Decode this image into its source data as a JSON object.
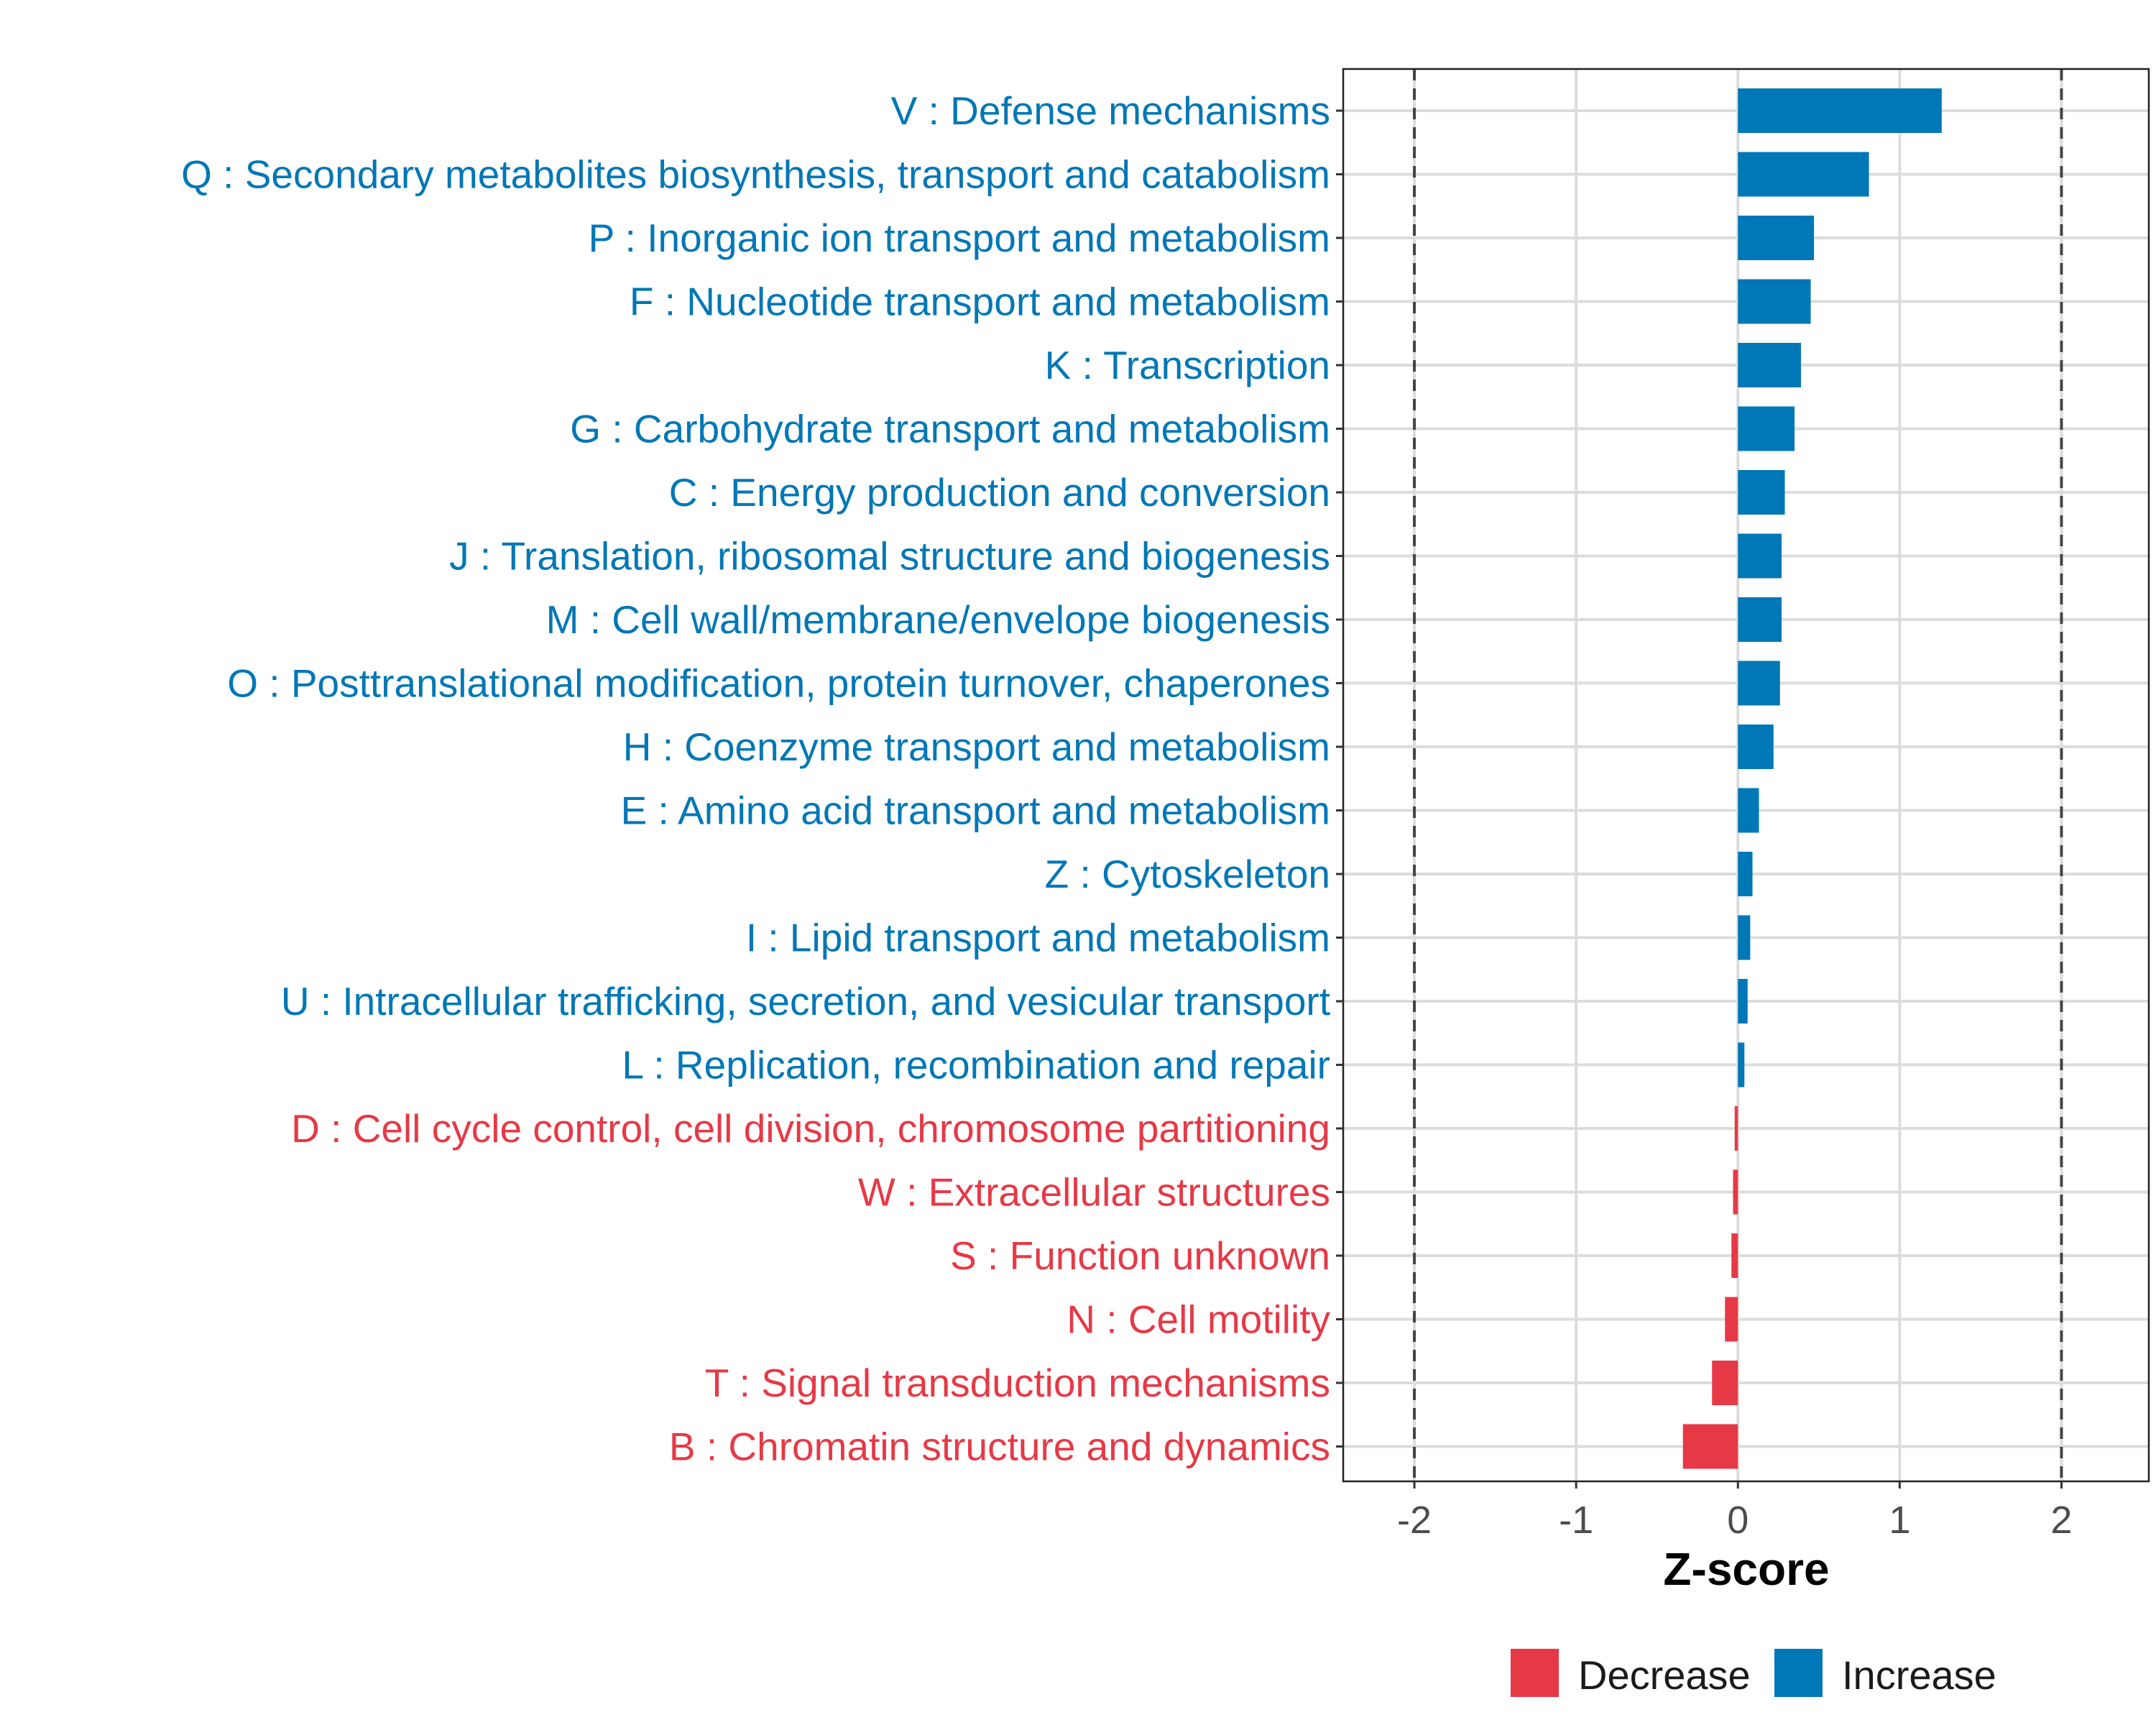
{
  "chart_data": {
    "type": "bar",
    "orientation": "horizontal",
    "title": "",
    "xlabel": "Z-score",
    "ylabel": "",
    "xlim": [
      -2.44,
      2.54
    ],
    "xticks": [
      "-2",
      "-1",
      "0",
      "1",
      "2"
    ],
    "xtick_values": [
      -2,
      -1,
      0,
      1,
      2
    ],
    "reference_lines": [
      -2,
      2
    ],
    "grid": true,
    "legend": {
      "placement": "bottom",
      "entries": [
        {
          "label": "Decrease",
          "color": "#E63946"
        },
        {
          "label": "Increase",
          "color": "#0077B6"
        }
      ]
    },
    "categories": [
      "V : Defense mechanisms",
      "Q : Secondary metabolites biosynthesis, transport and catabolism",
      "P : Inorganic ion transport and metabolism",
      "F : Nucleotide transport and metabolism",
      "K : Transcription",
      "G : Carbohydrate transport and metabolism",
      "C : Energy production and conversion",
      "J : Translation, ribosomal structure and biogenesis",
      "M : Cell wall/membrane/envelope biogenesis",
      "O : Posttranslational modification, protein turnover, chaperones",
      "H : Coenzyme transport and metabolism",
      "E : Amino acid transport and metabolism",
      "Z : Cytoskeleton",
      "I : Lipid transport and metabolism",
      "U : Intracellular trafficking, secretion, and vesicular transport",
      "L : Replication, recombination and repair",
      "D : Cell cycle control, cell division, chromosome partitioning",
      "W : Extracellular structures",
      "S : Function unknown",
      "N : Cell motility",
      "T : Signal transduction mechanisms",
      "B : Chromatin structure and dynamics"
    ],
    "values": [
      1.26,
      0.81,
      0.47,
      0.45,
      0.39,
      0.35,
      0.29,
      0.27,
      0.27,
      0.26,
      0.22,
      0.13,
      0.09,
      0.076,
      0.06,
      0.04,
      -0.02,
      -0.03,
      -0.04,
      -0.08,
      -0.16,
      -0.34
    ]
  }
}
